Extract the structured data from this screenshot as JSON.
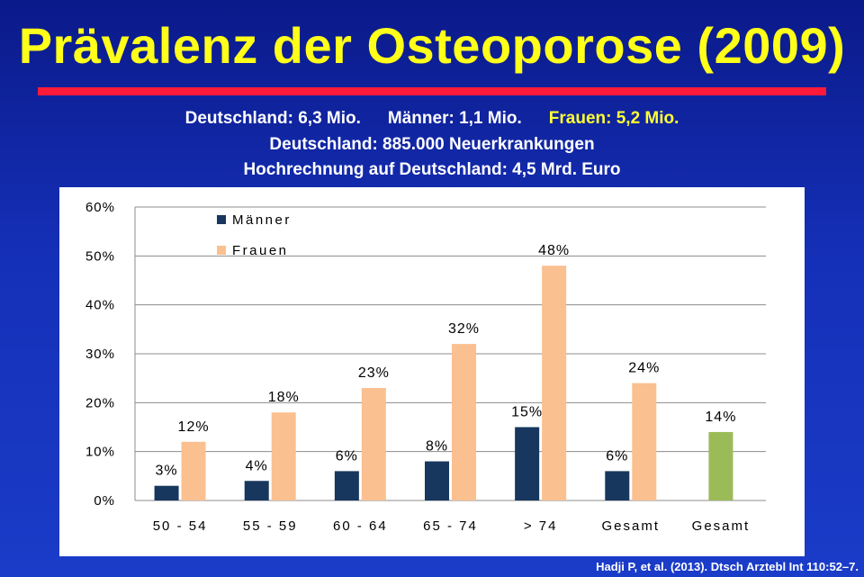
{
  "slide": {
    "title": "Prävalenz der Osteoporose (2009)",
    "line1": {
      "deutschland": "Deutschland: 6,3 Mio.",
      "maenner": "Männer: 1,1 Mio.",
      "frauen": "Frauen: 5,2 Mio."
    },
    "line2": "Deutschland: 885.000 Neuerkrankungen",
    "line3": "Hochrechnung auf Deutschland: 4,5 Mrd. Euro",
    "citation": "Hadji P, et al. (2013). Dtsch Arztebl Int 110:52–7."
  },
  "colors": {
    "maenner": "#17375e",
    "frauen": "#fac090",
    "gesamt": "#9bbb59",
    "title": "#ffff1a",
    "accent_bar": "#ff1a3a"
  },
  "chart_data": {
    "type": "bar",
    "categories": [
      "50 - 54",
      "55 - 59",
      "60 - 64",
      "65 - 74",
      "> 74",
      "Gesamt",
      "Gesamt"
    ],
    "series": [
      {
        "name": "Männer",
        "values": [
          3,
          4,
          6,
          8,
          15,
          6,
          null
        ],
        "labels": [
          "3%",
          "4%",
          "6%",
          "8%",
          "15%",
          "6%",
          ""
        ]
      },
      {
        "name": "Frauen",
        "values": [
          12,
          18,
          23,
          32,
          48,
          24,
          null
        ],
        "labels": [
          "12%",
          "18%",
          "23%",
          "32%",
          "48%",
          "24%",
          ""
        ]
      },
      {
        "name": "",
        "values": [
          null,
          null,
          null,
          null,
          null,
          null,
          14
        ],
        "labels": [
          "",
          "",
          "",
          "",
          "",
          "",
          "14%"
        ]
      }
    ],
    "yticks": [
      "0%",
      "10%",
      "20%",
      "30%",
      "40%",
      "50%",
      "60%"
    ],
    "ylim": [
      0,
      60
    ],
    "grid": true,
    "legend": {
      "entries": [
        "Männer",
        "Frauen"
      ],
      "placement": "top-left"
    }
  }
}
